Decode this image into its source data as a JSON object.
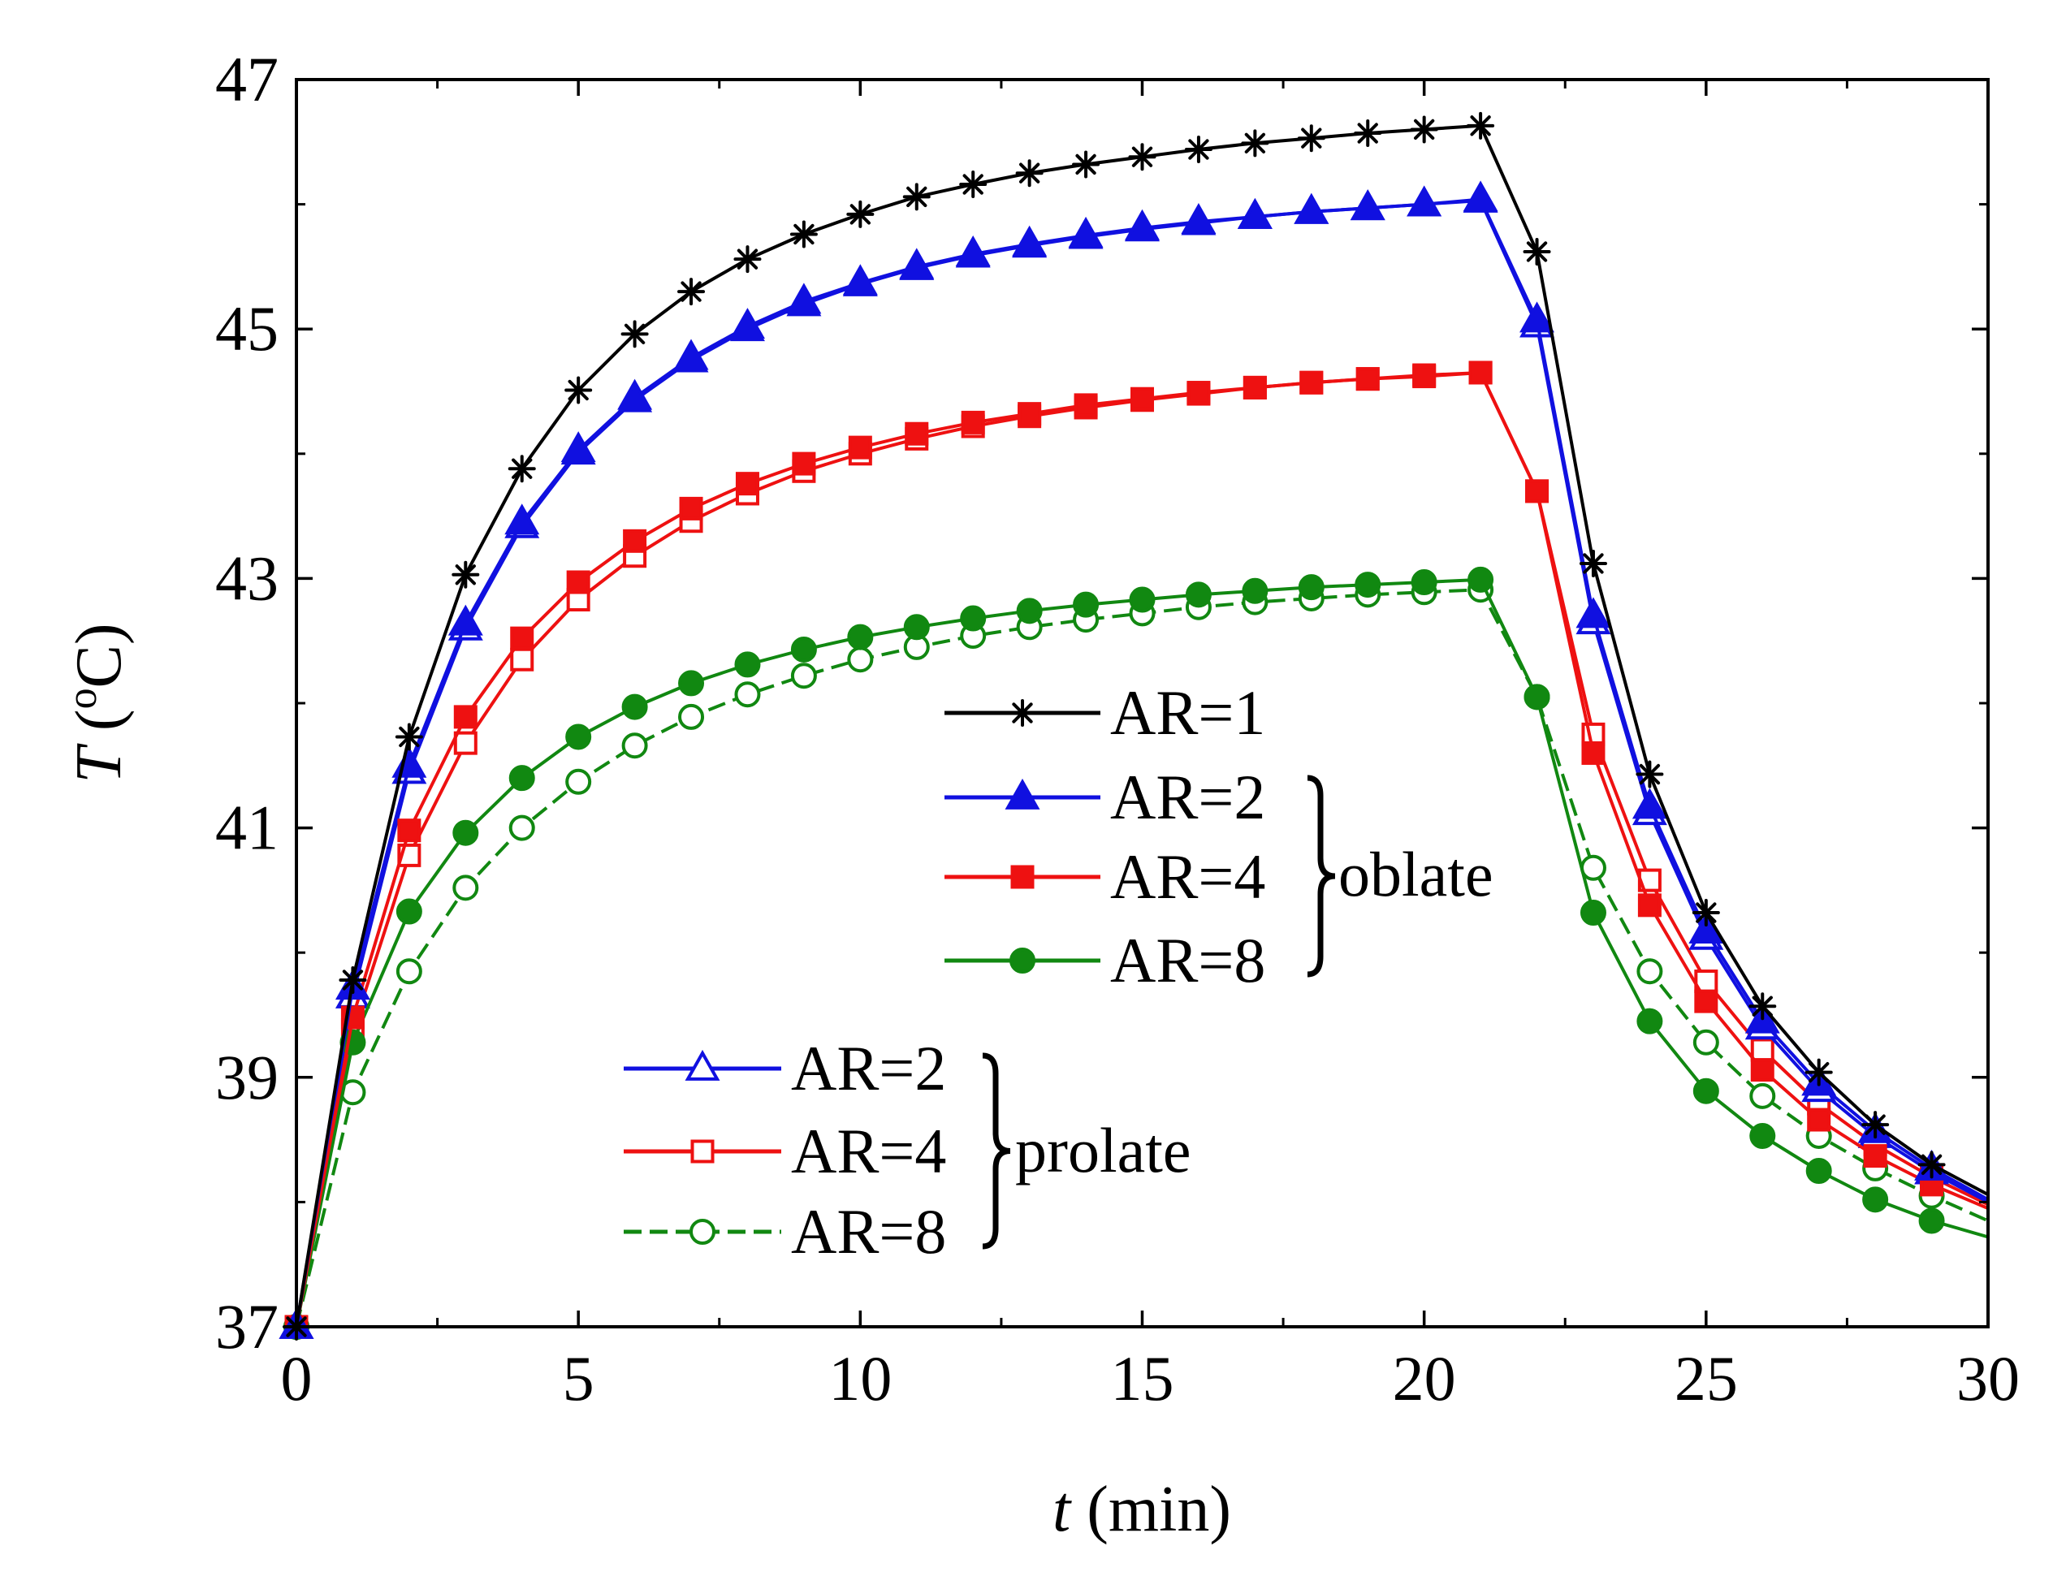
{
  "chart_data": {
    "type": "line",
    "xlabel_var": "t",
    "xlabel_unit": " (min)",
    "ylabel_var": "T",
    "ylabel_open": " (",
    "ylabel_sup": "o",
    "ylabel_close": "C)",
    "xlim": [
      0,
      30
    ],
    "ylim": [
      37,
      47
    ],
    "xticks": [
      0,
      5,
      10,
      15,
      20,
      25,
      30
    ],
    "xtick_labels": [
      "0",
      "5",
      "10",
      "15",
      "20",
      "25",
      "30"
    ],
    "yticks": [
      37,
      39,
      41,
      43,
      45,
      47
    ],
    "ytick_labels": [
      "37",
      "39",
      "41",
      "43",
      "45",
      "47"
    ],
    "grid": false,
    "x": [
      0,
      1,
      2,
      3,
      4,
      5,
      6,
      7,
      8,
      9,
      10,
      11,
      12,
      13,
      14,
      15,
      16,
      17,
      18,
      19,
      20,
      21,
      22,
      23,
      24,
      25,
      26,
      27,
      28,
      29,
      30
    ],
    "series": [
      {
        "name": "AR=1",
        "group": "",
        "color": "#000000",
        "marker": "star",
        "filled": true,
        "dashed": false,
        "values": [
          37.0,
          39.78,
          41.73,
          43.03,
          43.88,
          44.51,
          44.96,
          45.3,
          45.56,
          45.76,
          45.92,
          46.06,
          46.16,
          46.25,
          46.32,
          46.38,
          46.44,
          46.49,
          46.53,
          46.57,
          46.6,
          46.63,
          45.62,
          43.12,
          41.43,
          40.32,
          39.57,
          39.04,
          38.62,
          38.3,
          38.06
        ]
      },
      {
        "name": "AR=2",
        "group": "oblate",
        "color": "#1010E0",
        "marker": "triangle",
        "filled": true,
        "dashed": false,
        "values": [
          37.0,
          39.72,
          41.5,
          42.64,
          43.45,
          44.03,
          44.45,
          44.77,
          45.02,
          45.22,
          45.37,
          45.5,
          45.6,
          45.68,
          45.75,
          45.81,
          45.86,
          45.9,
          45.94,
          45.97,
          46.0,
          46.04,
          45.07,
          42.7,
          41.17,
          40.17,
          39.45,
          38.95,
          38.57,
          38.27,
          38.02
        ]
      },
      {
        "name": "AR=4",
        "group": "oblate",
        "color": "#EE1111",
        "marker": "square",
        "filled": true,
        "dashed": false,
        "values": [
          37.0,
          39.48,
          40.98,
          41.89,
          42.52,
          42.97,
          43.3,
          43.56,
          43.76,
          43.92,
          44.05,
          44.16,
          44.25,
          44.32,
          44.39,
          44.44,
          44.49,
          44.53,
          44.57,
          44.6,
          44.62,
          44.65,
          43.7,
          41.6,
          40.38,
          39.61,
          39.06,
          38.66,
          38.37,
          38.14,
          37.95
        ]
      },
      {
        "name": "AR=8",
        "group": "oblate",
        "color": "#118811",
        "marker": "circle",
        "filled": true,
        "dashed": false,
        "values": [
          37.0,
          39.28,
          40.33,
          40.96,
          41.4,
          41.73,
          41.97,
          42.16,
          42.31,
          42.43,
          42.53,
          42.61,
          42.68,
          42.74,
          42.79,
          42.83,
          42.87,
          42.9,
          42.93,
          42.95,
          42.97,
          42.99,
          42.05,
          40.32,
          39.45,
          38.89,
          38.53,
          38.25,
          38.02,
          37.85,
          37.72
        ]
      },
      {
        "name": "AR=2",
        "group": "prolate",
        "color": "#1010E0",
        "marker": "triangle",
        "filled": false,
        "dashed": false,
        "values": [
          37.0,
          39.65,
          41.45,
          42.6,
          43.42,
          44.01,
          44.43,
          44.75,
          45.0,
          45.2,
          45.36,
          45.49,
          45.59,
          45.67,
          45.74,
          45.8,
          45.85,
          45.9,
          45.94,
          45.97,
          46.0,
          46.03,
          45.03,
          42.65,
          41.12,
          40.12,
          39.4,
          38.9,
          38.53,
          38.24,
          38.0
        ]
      },
      {
        "name": "AR=4",
        "group": "prolate",
        "color": "#EE1111",
        "marker": "square",
        "filled": false,
        "dashed": false,
        "values": [
          37.0,
          39.38,
          40.78,
          41.68,
          42.35,
          42.83,
          43.18,
          43.46,
          43.68,
          43.86,
          44.0,
          44.12,
          44.22,
          44.3,
          44.37,
          44.43,
          44.48,
          44.53,
          44.57,
          44.6,
          44.63,
          44.65,
          43.7,
          41.75,
          40.58,
          39.77,
          39.22,
          38.79,
          38.46,
          38.2,
          37.98
        ]
      },
      {
        "name": "AR=8",
        "group": "prolate",
        "color": "#118811",
        "marker": "circle",
        "filled": false,
        "dashed": true,
        "values": [
          37.0,
          38.88,
          39.85,
          40.52,
          41.0,
          41.37,
          41.66,
          41.89,
          42.07,
          42.22,
          42.35,
          42.45,
          42.54,
          42.61,
          42.67,
          42.72,
          42.77,
          42.81,
          42.84,
          42.87,
          42.89,
          42.91,
          42.05,
          40.68,
          39.85,
          39.28,
          38.85,
          38.53,
          38.27,
          38.05,
          37.85
        ]
      }
    ],
    "legend": {
      "oblate_group_label": "oblate",
      "prolate_group_label": "prolate",
      "placement": "center"
    }
  }
}
